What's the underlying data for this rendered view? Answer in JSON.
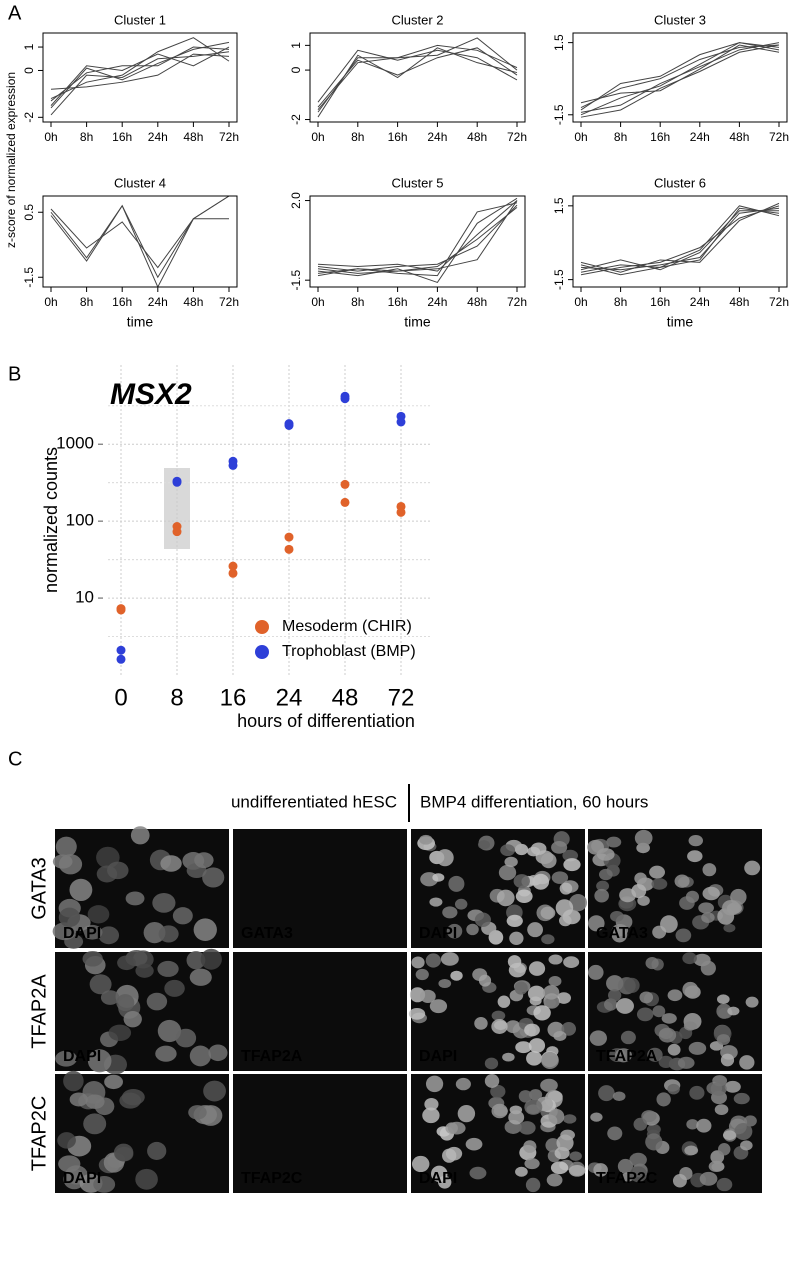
{
  "panel_labels": [
    "A",
    "B",
    "C"
  ],
  "panel_a": {
    "y_label": "z-score of normalized expression"
  },
  "chart_data": [
    {
      "type": "line",
      "title": "Cluster 1",
      "categories": [
        "0h",
        "8h",
        "16h",
        "24h",
        "48h",
        "72h"
      ],
      "ylim": [
        -2.2,
        1.6
      ],
      "yticks": [
        -2,
        0,
        1
      ],
      "series": [
        {
          "color": "#444444",
          "values": [
            -1.9,
            -0.2,
            -0.3,
            0.5,
            0.6,
            0.8
          ]
        },
        {
          "color": "#444444",
          "values": [
            -1.5,
            0.2,
            0,
            0.7,
            0.2,
            1.0
          ]
        },
        {
          "color": "#444444",
          "values": [
            -1.2,
            -0.5,
            -0.2,
            0.8,
            1.4,
            0.4
          ]
        },
        {
          "color": "#444444",
          "values": [
            -1.6,
            0.1,
            -0.4,
            0.3,
            0.9,
            1.2
          ]
        },
        {
          "color": "#444444",
          "values": [
            -0.8,
            -0.7,
            -0.5,
            -0.2,
            0.7,
            0.6
          ]
        },
        {
          "color": "#444444",
          "values": [
            -1.3,
            -0.1,
            0.2,
            0.2,
            1.0,
            0.9
          ]
        }
      ]
    },
    {
      "type": "line",
      "title": "Cluster 2",
      "categories": [
        "0h",
        "8h",
        "16h",
        "24h",
        "48h",
        "72h"
      ],
      "ylim": [
        -2.1,
        1.5
      ],
      "yticks": [
        -2,
        0,
        1
      ],
      "series": [
        {
          "color": "#444444",
          "values": [
            -1.9,
            0.6,
            -0.3,
            0.9,
            0.3,
            -0.1
          ]
        },
        {
          "color": "#444444",
          "values": [
            -1.6,
            0.3,
            0.5,
            0.6,
            1.3,
            0
          ]
        },
        {
          "color": "#444444",
          "values": [
            -1.3,
            0.8,
            0.4,
            0.8,
            0.5,
            -0.4
          ]
        },
        {
          "color": "#444444",
          "values": [
            -1.7,
            0.5,
            0.5,
            1.0,
            0.8,
            0.1
          ]
        },
        {
          "color": "#444444",
          "values": [
            -1.5,
            0.4,
            -0.2,
            0.5,
            0.9,
            -0.2
          ]
        }
      ]
    },
    {
      "type": "line",
      "title": "Cluster 3",
      "categories": [
        "0h",
        "8h",
        "16h",
        "24h",
        "48h",
        "72h"
      ],
      "ylim": [
        -1.8,
        1.9
      ],
      "yticks": [
        -1.5,
        1.5
      ],
      "series": [
        {
          "color": "#444444",
          "values": [
            -1.5,
            -0.8,
            -0.3,
            0.6,
            1.5,
            1.2
          ]
        },
        {
          "color": "#444444",
          "values": [
            -1.2,
            -0.4,
            0,
            0.8,
            1.3,
            1.4
          ]
        },
        {
          "color": "#444444",
          "values": [
            -1.4,
            -1.1,
            -0.2,
            0.5,
            1.2,
            1.5
          ]
        },
        {
          "color": "#444444",
          "values": [
            -1.0,
            -0.6,
            -0.5,
            0.4,
            1.4,
            1.1
          ]
        },
        {
          "color": "#444444",
          "values": [
            -1.3,
            -0.2,
            0.1,
            1.0,
            1.5,
            1.3
          ]
        },
        {
          "color": "#444444",
          "values": [
            -1.6,
            -1.3,
            -0.4,
            0.3,
            1.1,
            1.4
          ]
        }
      ]
    },
    {
      "type": "line",
      "title": "Cluster 4",
      "categories": [
        "0h",
        "8h",
        "16h",
        "24h",
        "48h",
        "72h"
      ],
      "ylim": [
        -1.8,
        1.0
      ],
      "yticks": [
        -1.5,
        0.5
      ],
      "x_label": "time",
      "series": [
        {
          "color": "#444444",
          "values": [
            0.5,
            -0.9,
            0.7,
            -1.8,
            0.3,
            1.0
          ]
        },
        {
          "color": "#444444",
          "values": [
            0.6,
            -0.6,
            0.2,
            -1.2,
            0.3,
            0.3
          ]
        },
        {
          "color": "#444444",
          "values": [
            0.4,
            -1.0,
            0.7,
            -1.5,
            0.3,
            1.0
          ]
        }
      ]
    },
    {
      "type": "line",
      "title": "Cluster 5",
      "categories": [
        "0h",
        "8h",
        "16h",
        "24h",
        "48h",
        "72h"
      ],
      "ylim": [
        -1.8,
        2.2
      ],
      "yticks": [
        -1.5,
        {
          "value": 2,
          "label": "2.0"
        }
      ],
      "x_label": "time",
      "series": [
        {
          "color": "#444444",
          "values": [
            -1,
            -1.2,
            -1.1,
            -1.0,
            -0.6,
            2.0
          ]
        },
        {
          "color": "#444444",
          "values": [
            -0.8,
            -0.9,
            -0.8,
            -1.1,
            0.5,
            2.0
          ]
        },
        {
          "color": "#444444",
          "values": [
            -1.2,
            -1.0,
            -1.2,
            -1.3,
            1.5,
            1.9
          ]
        },
        {
          "color": "#444444",
          "values": [
            -0.9,
            -1.1,
            -0.9,
            -0.8,
            0.0,
            1.8
          ]
        },
        {
          "color": "#444444",
          "values": [
            -1.1,
            -1.3,
            -1.0,
            -1.6,
            1.0,
            2.1
          ]
        },
        {
          "color": "#444444",
          "values": [
            -1.3,
            -1.0,
            -1.1,
            -0.9,
            0.3,
            1.7
          ]
        }
      ]
    },
    {
      "type": "line",
      "title": "Cluster 6",
      "categories": [
        "0h",
        "8h",
        "16h",
        "24h",
        "48h",
        "72h"
      ],
      "ylim": [
        -1.8,
        1.9
      ],
      "yticks": [
        -1.5,
        1.5
      ],
      "x_label": "time",
      "series": [
        {
          "color": "#444444",
          "values": [
            -1.0,
            -1.1,
            -0.9,
            -0.6,
            1.2,
            1.4
          ]
        },
        {
          "color": "#444444",
          "values": [
            -1.2,
            -0.9,
            -1.0,
            -0.3,
            1.5,
            1.1
          ]
        },
        {
          "color": "#444444",
          "values": [
            -0.8,
            -1.2,
            -0.7,
            -0.8,
            0.9,
            1.6
          ]
        },
        {
          "color": "#444444",
          "values": [
            -1.1,
            -0.7,
            -1.1,
            -0.4,
            1.3,
            1.3
          ]
        },
        {
          "color": "#444444",
          "values": [
            -1.3,
            -1.0,
            -0.8,
            -0.2,
            1.0,
            1.5
          ]
        },
        {
          "color": "#444444",
          "values": [
            -0.9,
            -1.3,
            -1.0,
            -0.7,
            1.4,
            1.2
          ]
        }
      ]
    },
    {
      "type": "strip",
      "title": "MSX2",
      "categories": [
        "0",
        "8",
        "16",
        "24",
        "48",
        "72"
      ],
      "y_label": "normalized counts",
      "x_label": "hours of differentiation",
      "log_scale": true,
      "ylim": [
        1,
        10700
      ],
      "yticks": [
        10,
        100,
        1000
      ],
      "grid": true,
      "legend": "bottom-right",
      "series": [
        {
          "name": "Mesoderm (CHIR)",
          "color": "#e0622a",
          "values": [
            [
              7.3,
              7.0
            ],
            [
              85,
              73
            ],
            [
              26,
              21
            ],
            [
              62,
              43
            ],
            [
              300,
              175
            ],
            [
              155,
              130
            ]
          ]
        },
        {
          "name": "Trophoblast (BMP)",
          "color": "#2e3fd8",
          "values": [
            [
              2.1,
              1.6
            ],
            [
              330,
              320
            ],
            [
              600,
              530
            ],
            [
              1850,
              1750
            ],
            [
              4200,
              3900
            ],
            [
              2300,
              1950
            ]
          ]
        }
      ]
    }
  ],
  "panel_c": {
    "headers": [
      "undifferentiated hESC",
      "BMP4 differentiation, 60 hours"
    ],
    "rows": [
      {
        "label": "GATA3",
        "images": [
          "DAPI",
          "GATA3",
          "DAPI",
          "GATA3"
        ]
      },
      {
        "label": "TFAP2A",
        "images": [
          "DAPI",
          "TFAP2A",
          "DAPI",
          "TFAP2A"
        ]
      },
      {
        "label": "TFAP2C",
        "images": [
          "DAPI",
          "TFAP2C",
          "DAPI",
          "TFAP2C"
        ]
      }
    ]
  }
}
